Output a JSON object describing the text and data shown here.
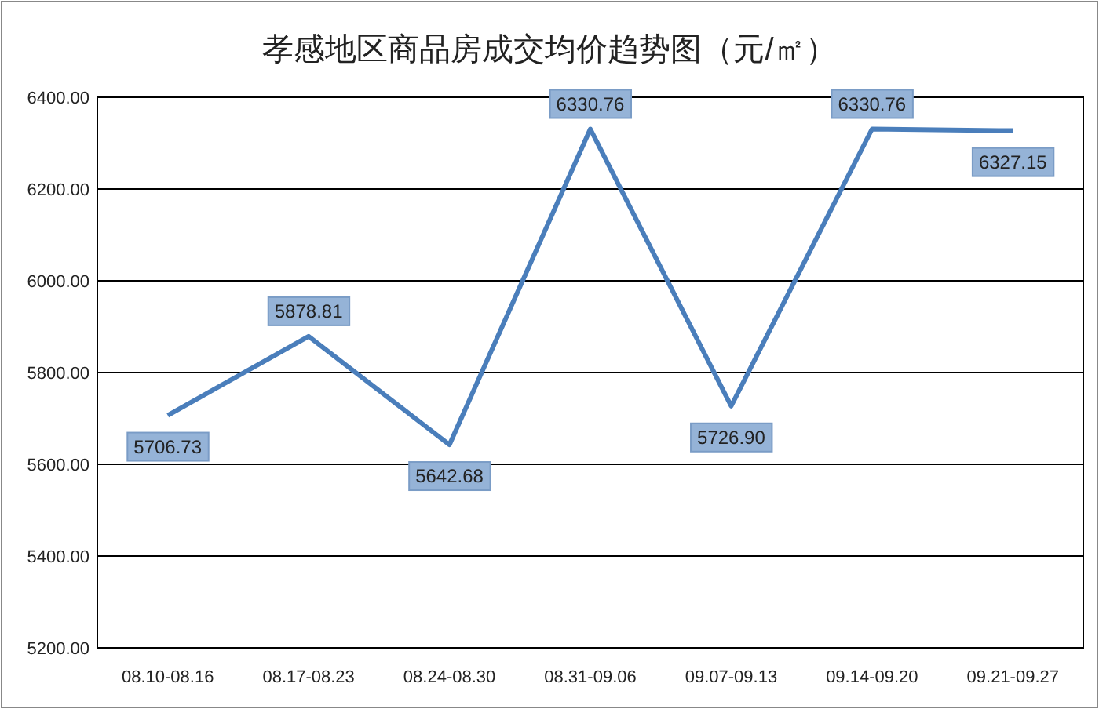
{
  "chart_data": {
    "type": "line",
    "title": "孝感地区商品房成交均价趋势图（元/㎡）",
    "categories": [
      "08.10-08.16",
      "08.17-08.23",
      "08.24-08.30",
      "08.31-09.06",
      "09.07-09.13",
      "09.14-09.20",
      "09.21-09.27"
    ],
    "series": [
      {
        "color": "#4a7ebb",
        "values": [
          5706.73,
          5878.81,
          5642.68,
          6330.76,
          5726.9,
          6330.76,
          6327.15
        ],
        "value_labels": [
          "5706.73",
          "5878.81",
          "5642.68",
          "6330.76",
          "5726.90",
          "6330.76",
          "6327.15"
        ]
      }
    ],
    "ylim": [
      5200,
      6400
    ],
    "yticks": [
      {
        "value": 5200,
        "label": "5200.00"
      },
      {
        "value": 5400,
        "label": "5400.00"
      },
      {
        "value": 5600,
        "label": "5600.00"
      },
      {
        "value": 5800,
        "label": "5800.00"
      },
      {
        "value": 6000,
        "label": "6000.00"
      },
      {
        "value": 6200,
        "label": "6200.00"
      },
      {
        "value": 6400,
        "label": "6400.00"
      }
    ],
    "grid": "y",
    "marker": "none",
    "line_style": "solid"
  }
}
